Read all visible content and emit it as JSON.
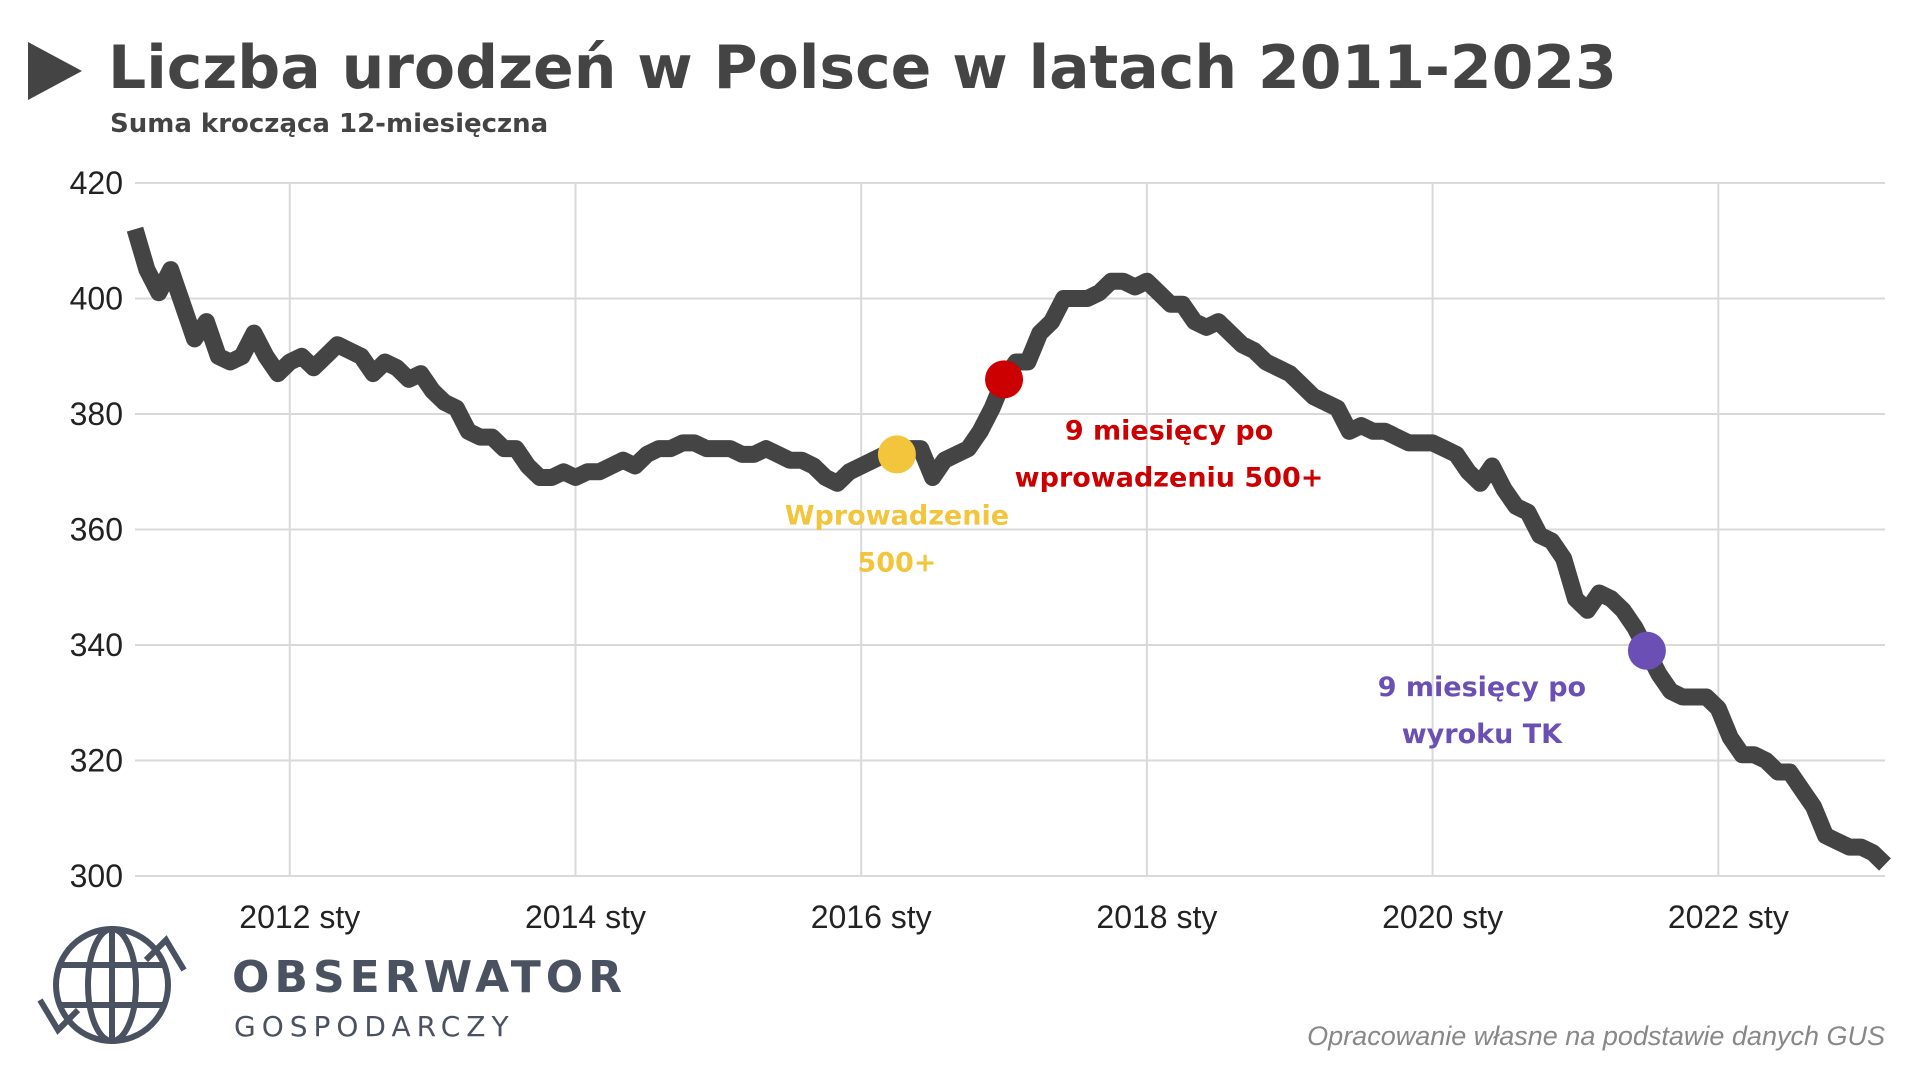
{
  "chart_data": {
    "type": "line",
    "title": "Liczba urodzeń w Polsce w latach 2011-2023",
    "subtitle": "Suma krocząca 12-miesięczna",
    "x": [
      "2010-12",
      "2011-01",
      "2011-02",
      "2011-03",
      "2011-04",
      "2011-05",
      "2011-06",
      "2011-07",
      "2011-08",
      "2011-09",
      "2011-10",
      "2011-11",
      "2011-12",
      "2012-01",
      "2012-02",
      "2012-03",
      "2012-04",
      "2012-05",
      "2012-06",
      "2012-07",
      "2012-08",
      "2012-09",
      "2012-10",
      "2012-11",
      "2012-12",
      "2013-01",
      "2013-02",
      "2013-03",
      "2013-04",
      "2013-05",
      "2013-06",
      "2013-07",
      "2013-08",
      "2013-09",
      "2013-10",
      "2013-11",
      "2013-12",
      "2014-01",
      "2014-02",
      "2014-03",
      "2014-04",
      "2014-05",
      "2014-06",
      "2014-07",
      "2014-08",
      "2014-09",
      "2014-10",
      "2014-11",
      "2014-12",
      "2015-01",
      "2015-02",
      "2015-03",
      "2015-04",
      "2015-05",
      "2015-06",
      "2015-07",
      "2015-08",
      "2015-09",
      "2015-10",
      "2015-11",
      "2015-12",
      "2016-01",
      "2016-02",
      "2016-03",
      "2016-04",
      "2016-05",
      "2016-06",
      "2016-07",
      "2016-08",
      "2016-09",
      "2016-10",
      "2016-11",
      "2016-12",
      "2017-01",
      "2017-02",
      "2017-03",
      "2017-04",
      "2017-05",
      "2017-06",
      "2017-07",
      "2017-08",
      "2017-09",
      "2017-10",
      "2017-11",
      "2017-12",
      "2018-01",
      "2018-02",
      "2018-03",
      "2018-04",
      "2018-05",
      "2018-06",
      "2018-07",
      "2018-08",
      "2018-09",
      "2018-10",
      "2018-11",
      "2018-12",
      "2019-01",
      "2019-02",
      "2019-03",
      "2019-04",
      "2019-05",
      "2019-06",
      "2019-07",
      "2019-08",
      "2019-09",
      "2019-10",
      "2019-11",
      "2019-12",
      "2020-01",
      "2020-02",
      "2020-03",
      "2020-04",
      "2020-05",
      "2020-06",
      "2020-07",
      "2020-08",
      "2020-09",
      "2020-10",
      "2020-11",
      "2020-12",
      "2021-01",
      "2021-02",
      "2021-03",
      "2021-04",
      "2021-05",
      "2021-06",
      "2021-07",
      "2021-08",
      "2021-09",
      "2021-10",
      "2021-11",
      "2021-12",
      "2022-01",
      "2022-02",
      "2022-03",
      "2022-04",
      "2022-05",
      "2022-06",
      "2022-07",
      "2022-08",
      "2022-09",
      "2022-10",
      "2022-11",
      "2022-12",
      "2023-01",
      "2023-02",
      "2023-03"
    ],
    "series": [
      {
        "color": "#444444",
        "values": [
          412,
          405,
          401,
          405,
          399,
          393,
          396,
          390,
          389,
          390,
          394,
          390,
          387,
          389,
          390,
          388,
          390,
          392,
          391,
          390,
          387,
          389,
          388,
          386,
          387,
          384,
          382,
          381,
          377,
          376,
          376,
          374,
          374,
          371,
          369,
          369,
          370,
          369,
          370,
          370,
          371,
          372,
          371,
          373,
          374,
          374,
          375,
          375,
          374,
          374,
          374,
          373,
          373,
          374,
          373,
          372,
          372,
          371,
          369,
          368,
          370,
          371,
          372,
          373,
          373,
          374,
          374,
          369,
          372,
          373,
          374,
          377,
          381,
          386,
          389,
          389,
          394,
          396,
          400,
          400,
          400,
          401,
          403,
          403,
          402,
          403,
          401,
          399,
          399,
          396,
          395,
          396,
          394,
          392,
          391,
          389,
          388,
          387,
          385,
          383,
          382,
          381,
          377,
          378,
          377,
          377,
          376,
          375,
          375,
          375,
          374,
          373,
          370,
          368,
          371,
          367,
          364,
          363,
          359,
          358,
          355,
          348,
          346,
          349,
          348,
          346,
          343,
          339,
          335,
          332,
          331,
          331,
          331,
          329,
          324,
          321,
          321,
          320,
          318,
          318,
          315,
          312,
          307,
          306,
          305,
          305,
          304,
          302
        ]
      }
    ],
    "xlim": [
      "2010-12",
      "2023-03"
    ],
    "xticks": [
      {
        "value": "2012-01",
        "label": "2012 sty"
      },
      {
        "value": "2014-01",
        "label": "2014 sty"
      },
      {
        "value": "2016-01",
        "label": "2016 sty"
      },
      {
        "value": "2018-01",
        "label": "2018 sty"
      },
      {
        "value": "2020-01",
        "label": "2020 sty"
      },
      {
        "value": "2022-01",
        "label": "2022 sty"
      }
    ],
    "ylim": [
      300,
      420
    ],
    "yticks": [
      300,
      320,
      340,
      360,
      380,
      400,
      420
    ],
    "grid": true,
    "annotations": [
      {
        "x": "2016-04",
        "color": "#f2c53d",
        "lines": [
          "Wprowadzenie",
          "500+"
        ]
      },
      {
        "x": "2017-01",
        "color": "#cc0000",
        "lines": [
          "9 miesięcy po",
          "wprowadzeniu 500+"
        ]
      },
      {
        "x": "2021-07",
        "color": "#6b4fb5",
        "lines": [
          "9 miesięcy po",
          "wyroku TK"
        ]
      }
    ],
    "source": "Opracowanie własne na podstawie danych GUS"
  },
  "branding": {
    "name": "OBSERWATOR",
    "tagline": "GOSPODARCZY"
  }
}
